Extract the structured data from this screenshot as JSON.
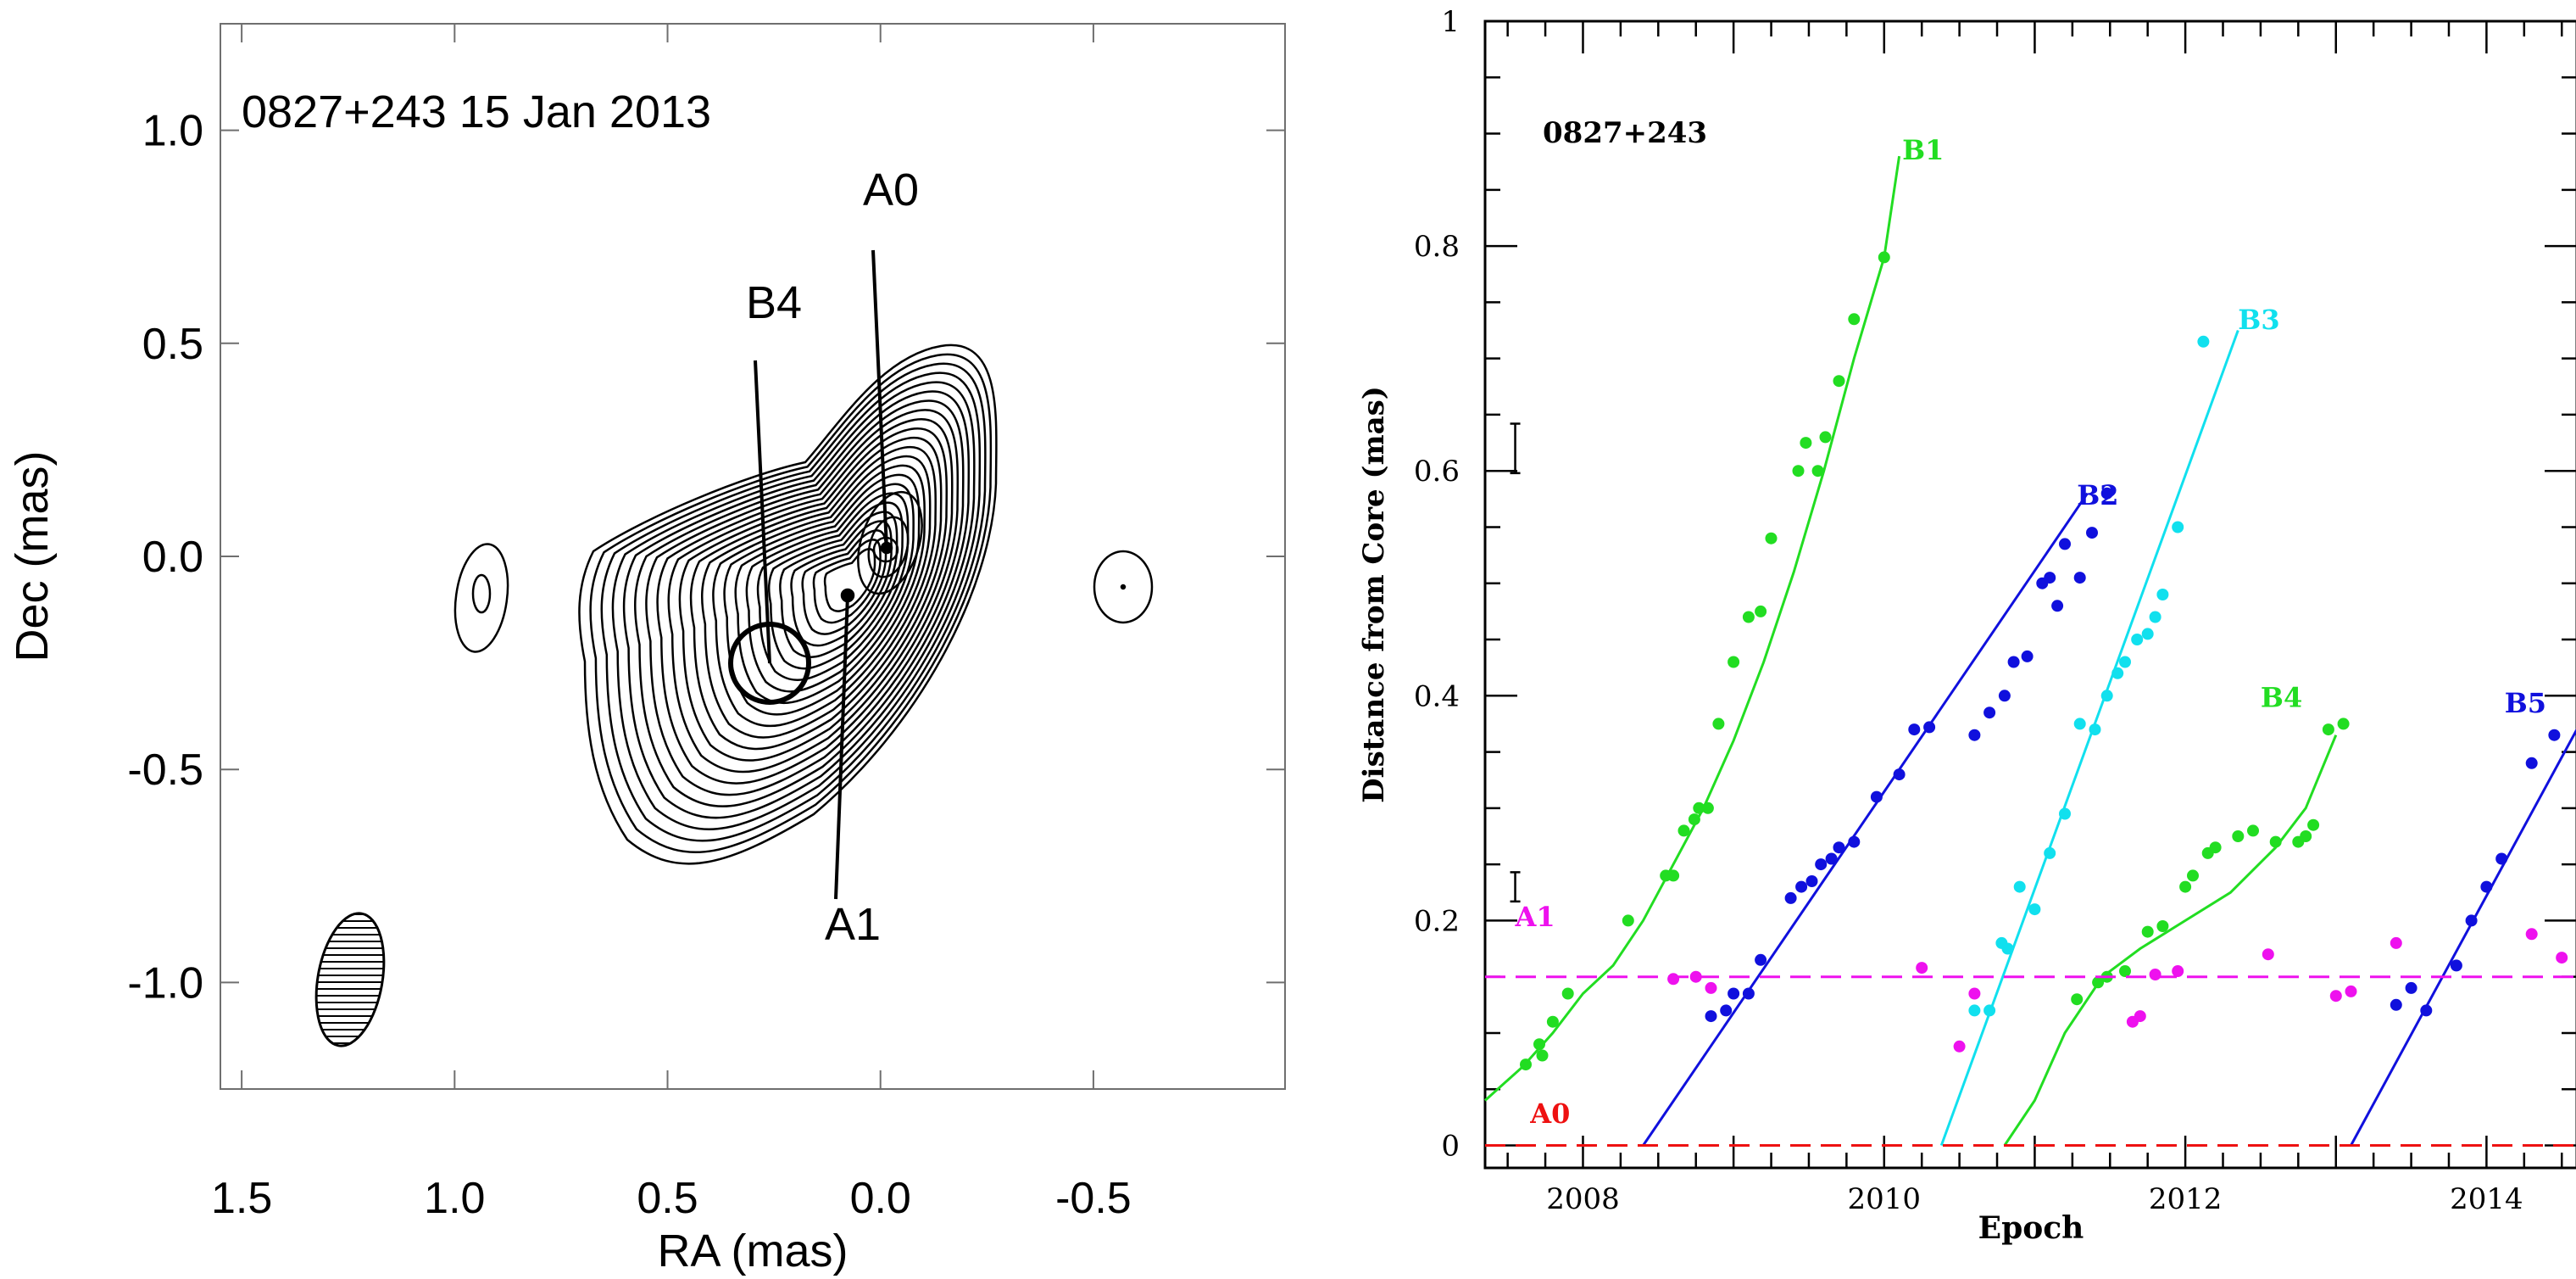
{
  "chart_data": [
    {
      "type": "contour",
      "title": "0827+243  15 Jan 2013",
      "xlabel": "RA (mas)",
      "ylabel": "Dec (mas)",
      "xlim": [
        1.55,
        -0.95
      ],
      "ylim": [
        -1.25,
        1.25
      ],
      "x_ticks": [
        1.5,
        1.0,
        0.5,
        0.0,
        -0.5
      ],
      "x_tick_labels": [
        "1.5",
        "1.0",
        "0.5",
        "0.0",
        "-0.5"
      ],
      "y_ticks": [
        1.0,
        0.5,
        0.0,
        -0.5,
        -1.0
      ],
      "y_tick_labels": [
        "1.0",
        "0.5",
        "0.0",
        "-0.5",
        "-1.0"
      ],
      "components": [
        {
          "name": "A0",
          "ra": 0.0,
          "dec": 0.0,
          "label_ra": 0.03,
          "label_dec": 0.82
        },
        {
          "name": "A1",
          "ra": 0.09,
          "dec": -0.11,
          "label_ra": 0.07,
          "label_dec": -0.85
        },
        {
          "name": "B4",
          "ra": 0.28,
          "dec": -0.26,
          "label_ra": 0.24,
          "label_dec": 0.57
        }
      ],
      "beam": {
        "ra": 1.25,
        "dec": -1.0
      }
    },
    {
      "type": "scatter",
      "title": "0827+243",
      "xlabel": "Epoch",
      "ylabel": "Distance from Core (mas)",
      "xlim": [
        2007.35,
        2014.6
      ],
      "ylim": [
        -0.02,
        1.0
      ],
      "x_major_ticks": [
        2008,
        2010,
        2012,
        2014
      ],
      "y_major_ticks": [
        0,
        0.2,
        0.4,
        0.6,
        0.8,
        1
      ],
      "y_tick_labels": [
        "0",
        "0.2",
        "0.4",
        "0.6",
        "0.8",
        "1"
      ],
      "error_bars": [
        {
          "x": 2007.55,
          "y": 0.62,
          "half": 0.022
        },
        {
          "x": 2007.55,
          "y": 0.23,
          "half": 0.013
        }
      ],
      "series": [
        {
          "name": "B1",
          "color": "#22dd22",
          "label_at": [
            2010.12,
            0.877
          ],
          "fit": [
            [
              2007.35,
              0.04
            ],
            [
              2007.6,
              0.07
            ],
            [
              2007.8,
              0.1
            ],
            [
              2008.0,
              0.135
            ],
            [
              2008.2,
              0.16
            ],
            [
              2008.4,
              0.2
            ],
            [
              2008.6,
              0.25
            ],
            [
              2008.8,
              0.3
            ],
            [
              2009.0,
              0.36
            ],
            [
              2009.2,
              0.43
            ],
            [
              2009.4,
              0.51
            ],
            [
              2009.6,
              0.6
            ],
            [
              2009.8,
              0.7
            ],
            [
              2010.0,
              0.79
            ],
            [
              2010.1,
              0.88
            ]
          ],
          "points": [
            [
              2007.62,
              0.072
            ],
            [
              2007.71,
              0.09
            ],
            [
              2007.73,
              0.08
            ],
            [
              2007.8,
              0.11
            ],
            [
              2007.9,
              0.135
            ],
            [
              2008.3,
              0.2
            ],
            [
              2008.55,
              0.24
            ],
            [
              2008.6,
              0.24
            ],
            [
              2008.67,
              0.28
            ],
            [
              2008.74,
              0.29
            ],
            [
              2008.77,
              0.3
            ],
            [
              2008.83,
              0.3
            ],
            [
              2008.9,
              0.375
            ],
            [
              2009.0,
              0.43
            ],
            [
              2009.1,
              0.47
            ],
            [
              2009.18,
              0.475
            ],
            [
              2009.25,
              0.54
            ],
            [
              2009.43,
              0.6
            ],
            [
              2009.48,
              0.625
            ],
            [
              2009.56,
              0.6
            ],
            [
              2009.61,
              0.63
            ],
            [
              2009.7,
              0.68
            ],
            [
              2009.8,
              0.735
            ],
            [
              2010.0,
              0.79
            ]
          ]
        },
        {
          "name": "B2",
          "color": "#1010dd",
          "label_at": [
            2011.28,
            0.57
          ],
          "fit": [
            [
              2008.4,
              0.0
            ],
            [
              2011.35,
              0.58
            ]
          ],
          "points": [
            [
              2008.85,
              0.115
            ],
            [
              2008.95,
              0.12
            ],
            [
              2009.0,
              0.135
            ],
            [
              2009.1,
              0.135
            ],
            [
              2009.18,
              0.165
            ],
            [
              2009.38,
              0.22
            ],
            [
              2009.45,
              0.23
            ],
            [
              2009.52,
              0.235
            ],
            [
              2009.58,
              0.25
            ],
            [
              2009.65,
              0.255
            ],
            [
              2009.7,
              0.265
            ],
            [
              2009.8,
              0.27
            ],
            [
              2009.95,
              0.31
            ],
            [
              2010.1,
              0.33
            ],
            [
              2010.2,
              0.37
            ],
            [
              2010.3,
              0.372
            ],
            [
              2010.6,
              0.365
            ],
            [
              2010.7,
              0.385
            ],
            [
              2010.8,
              0.4
            ],
            [
              2010.86,
              0.43
            ],
            [
              2010.95,
              0.435
            ],
            [
              2011.05,
              0.5
            ],
            [
              2011.1,
              0.505
            ],
            [
              2011.15,
              0.48
            ],
            [
              2011.2,
              0.535
            ],
            [
              2011.3,
              0.505
            ],
            [
              2011.38,
              0.545
            ],
            [
              2011.48,
              0.58
            ]
          ]
        },
        {
          "name": "B3",
          "color": "#11e0ee",
          "label_at": [
            2012.35,
            0.726
          ],
          "fit": [
            [
              2010.38,
              0.0
            ],
            [
              2012.35,
              0.725
            ]
          ],
          "points": [
            [
              2010.6,
              0.12
            ],
            [
              2010.7,
              0.12
            ],
            [
              2010.78,
              0.18
            ],
            [
              2010.82,
              0.175
            ],
            [
              2010.9,
              0.23
            ],
            [
              2011.0,
              0.21
            ],
            [
              2011.1,
              0.26
            ],
            [
              2011.2,
              0.295
            ],
            [
              2011.3,
              0.375
            ],
            [
              2011.4,
              0.37
            ],
            [
              2011.48,
              0.4
            ],
            [
              2011.55,
              0.42
            ],
            [
              2011.6,
              0.43
            ],
            [
              2011.68,
              0.45
            ],
            [
              2011.75,
              0.455
            ],
            [
              2011.8,
              0.47
            ],
            [
              2011.85,
              0.49
            ],
            [
              2011.95,
              0.55
            ],
            [
              2012.12,
              0.715
            ]
          ]
        },
        {
          "name": "B4",
          "color": "#22dd22",
          "label_at": [
            2012.5,
            0.39
          ],
          "fit": [
            [
              2010.8,
              0.0
            ],
            [
              2011.0,
              0.04
            ],
            [
              2011.2,
              0.1
            ],
            [
              2011.45,
              0.15
            ],
            [
              2011.7,
              0.175
            ],
            [
              2012.0,
              0.2
            ],
            [
              2012.3,
              0.225
            ],
            [
              2012.6,
              0.265
            ],
            [
              2012.8,
              0.3
            ],
            [
              2013.0,
              0.365
            ]
          ],
          "points": [
            [
              2011.28,
              0.13
            ],
            [
              2011.42,
              0.145
            ],
            [
              2011.48,
              0.15
            ],
            [
              2011.6,
              0.155
            ],
            [
              2011.75,
              0.19
            ],
            [
              2011.85,
              0.195
            ],
            [
              2012.0,
              0.23
            ],
            [
              2012.05,
              0.24
            ],
            [
              2012.15,
              0.26
            ],
            [
              2012.2,
              0.265
            ],
            [
              2012.35,
              0.275
            ],
            [
              2012.45,
              0.28
            ],
            [
              2012.6,
              0.27
            ],
            [
              2012.75,
              0.27
            ],
            [
              2012.8,
              0.275
            ],
            [
              2012.85,
              0.285
            ],
            [
              2012.95,
              0.37
            ],
            [
              2013.05,
              0.375
            ]
          ]
        },
        {
          "name": "B5",
          "color": "#1010dd",
          "label_at": [
            2014.12,
            0.385
          ],
          "fit": [
            [
              2013.1,
              0.0
            ],
            [
              2014.6,
              0.37
            ]
          ],
          "points": [
            [
              2013.4,
              0.125
            ],
            [
              2013.5,
              0.14
            ],
            [
              2013.6,
              0.12
            ],
            [
              2013.8,
              0.16
            ],
            [
              2013.9,
              0.2
            ],
            [
              2014.0,
              0.23
            ],
            [
              2014.1,
              0.255
            ],
            [
              2014.3,
              0.34
            ],
            [
              2014.45,
              0.365
            ]
          ]
        },
        {
          "name": "A1",
          "color": "#ee11ee",
          "label_at": [
            2007.55,
            0.195
          ],
          "fit": [
            [
              2007.35,
              0.15
            ],
            [
              2014.6,
              0.15
            ]
          ],
          "dashed": true,
          "points": [
            [
              2008.6,
              0.148
            ],
            [
              2008.75,
              0.15
            ],
            [
              2008.85,
              0.14
            ],
            [
              2010.25,
              0.158
            ],
            [
              2010.5,
              0.088
            ],
            [
              2010.6,
              0.135
            ],
            [
              2011.65,
              0.11
            ],
            [
              2011.7,
              0.115
            ],
            [
              2011.8,
              0.152
            ],
            [
              2011.95,
              0.155
            ],
            [
              2012.55,
              0.17
            ],
            [
              2013.0,
              0.133
            ],
            [
              2013.1,
              0.137
            ],
            [
              2013.4,
              0.18
            ],
            [
              2014.3,
              0.188
            ],
            [
              2014.5,
              0.167
            ]
          ]
        },
        {
          "name": "A0",
          "color": "#ee1111",
          "label_at": [
            2007.65,
            0.02
          ],
          "fit": [
            [
              2007.35,
              0.0
            ],
            [
              2014.6,
              0.0
            ]
          ],
          "dashed": true,
          "points": []
        }
      ]
    }
  ]
}
